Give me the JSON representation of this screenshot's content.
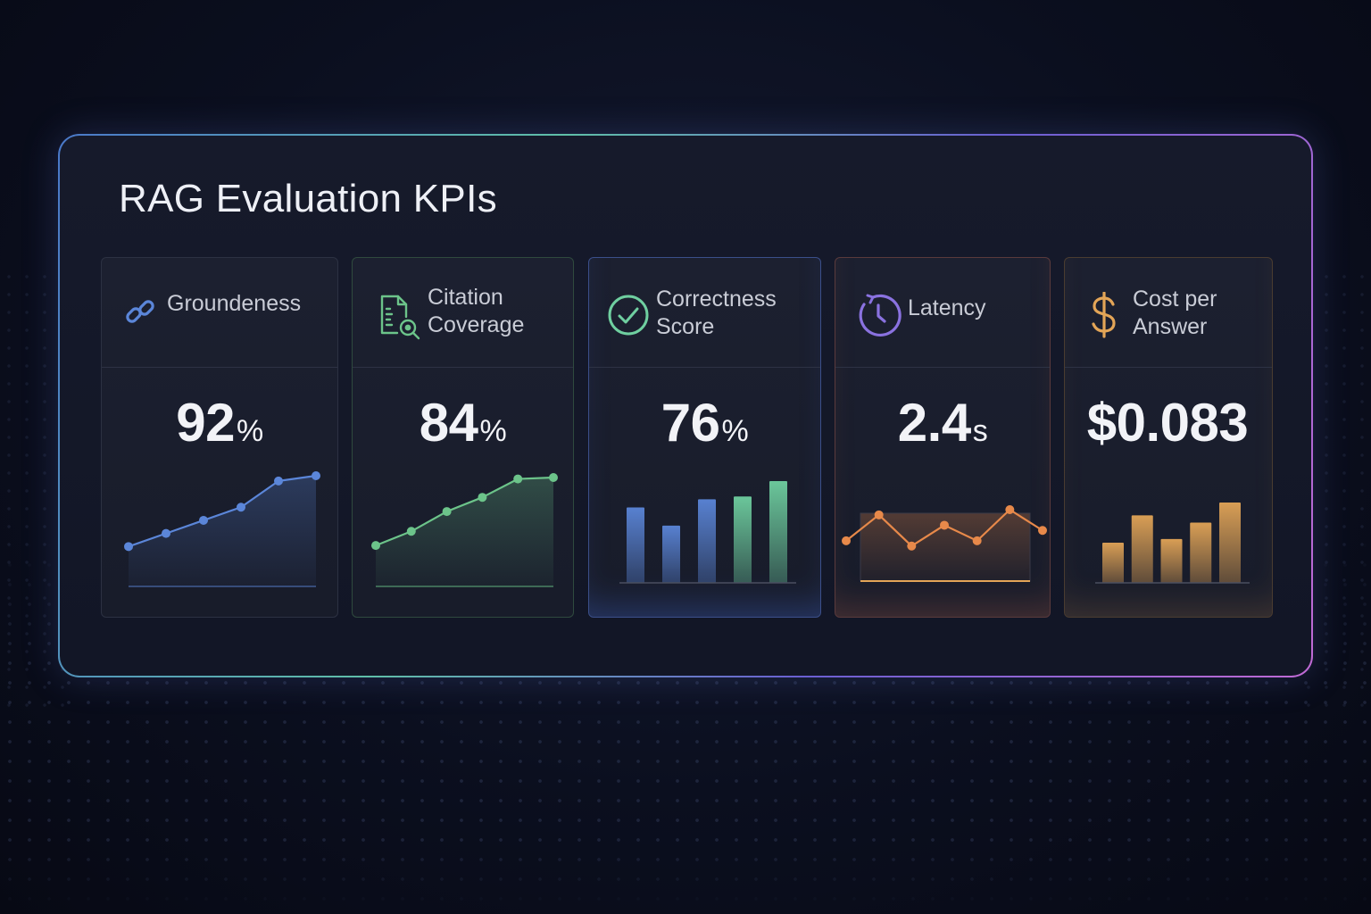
{
  "dashboard": {
    "title": "RAG Evaluation KPIs",
    "cards": [
      {
        "icon": "link-icon",
        "label": "Groundeness",
        "value": "92",
        "unit": "%",
        "accent": "#5b86d9",
        "chart": {
          "type": "line",
          "values": [
            1,
            2,
            3,
            4,
            6,
            6.4
          ]
        }
      },
      {
        "icon": "document-search-icon",
        "label": "Citation\nCoverage",
        "value": "84",
        "unit": "%",
        "accent": "#6cc48a",
        "chart": {
          "type": "line",
          "values": [
            1,
            2,
            3.4,
            4.4,
            5.7,
            5.8
          ]
        }
      },
      {
        "icon": "check-circle-icon",
        "label": "Correctness\nScore",
        "value": "76",
        "unit": "%",
        "accent": "#6fcfa0",
        "chart": {
          "type": "bar",
          "values": [
            83,
            63,
            92,
            95,
            112
          ]
        }
      },
      {
        "icon": "clock-icon",
        "label": "Latency",
        "value": "2.4",
        "unit": "s",
        "accent": "#e7894a",
        "chart": {
          "type": "line",
          "values": [
            3,
            5.5,
            2.5,
            4.5,
            3,
            6,
            4
          ]
        }
      },
      {
        "icon": "dollar-icon",
        "label": "Cost per\nAnswer",
        "value": "$0.083",
        "unit": "",
        "accent": "#e3a557",
        "chart": {
          "type": "bar",
          "values": [
            44,
            74,
            48,
            66,
            88
          ]
        }
      }
    ]
  }
}
